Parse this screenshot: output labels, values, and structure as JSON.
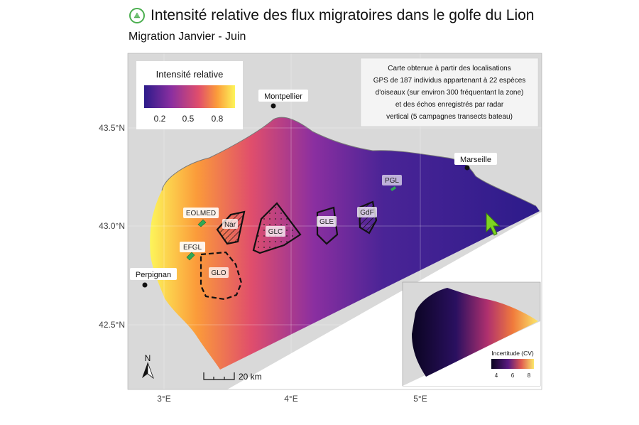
{
  "header": {
    "logo_icon": "bird-icon",
    "title": "Intensité relative des flux migratoires dans le golfe du Lion",
    "subtitle": "Migration Janvier - Juin"
  },
  "axes": {
    "lat_labels": [
      "43.5°N",
      "43.0°N",
      "42.5°N"
    ],
    "lon_labels": [
      "3°E",
      "4°E",
      "5°E"
    ]
  },
  "legend": {
    "title": "Intensité relative",
    "ticks": [
      "0.2",
      "0.5",
      "0.8"
    ],
    "colors": [
      "#2c1b8a",
      "#8b2fa0",
      "#e04e6c",
      "#fb9b3a",
      "#fdf55a"
    ]
  },
  "note": {
    "lines": [
      "Carte obtenue à partir des localisations",
      "GPS de 187 individus appartenant à 22 espèces",
      "d'oiseaux (sur environ 300 fréquentant la zone)",
      "et des échos enregistrés par radar",
      "vertical (5 campagnes transects bateau)"
    ]
  },
  "places": {
    "montpellier": "Montpellier",
    "marseille": "Marseille",
    "perpignan": "Perpignan"
  },
  "zones": {
    "eolmed": "EOLMED",
    "efgl": "EFGL",
    "pgl": "PGL",
    "nar": "Nar",
    "glc": "GLC",
    "gle": "GLE",
    "gdf": "GdF",
    "glo": "GLO"
  },
  "compass": {
    "label": "N",
    "icon": "north-arrow-icon"
  },
  "scale": {
    "label": "20 km"
  },
  "inset": {
    "legend_title": "Incertitude (CV)",
    "ticks": [
      "4",
      "6",
      "8"
    ]
  },
  "cursor": {
    "icon": "cursor-arrow-icon"
  }
}
